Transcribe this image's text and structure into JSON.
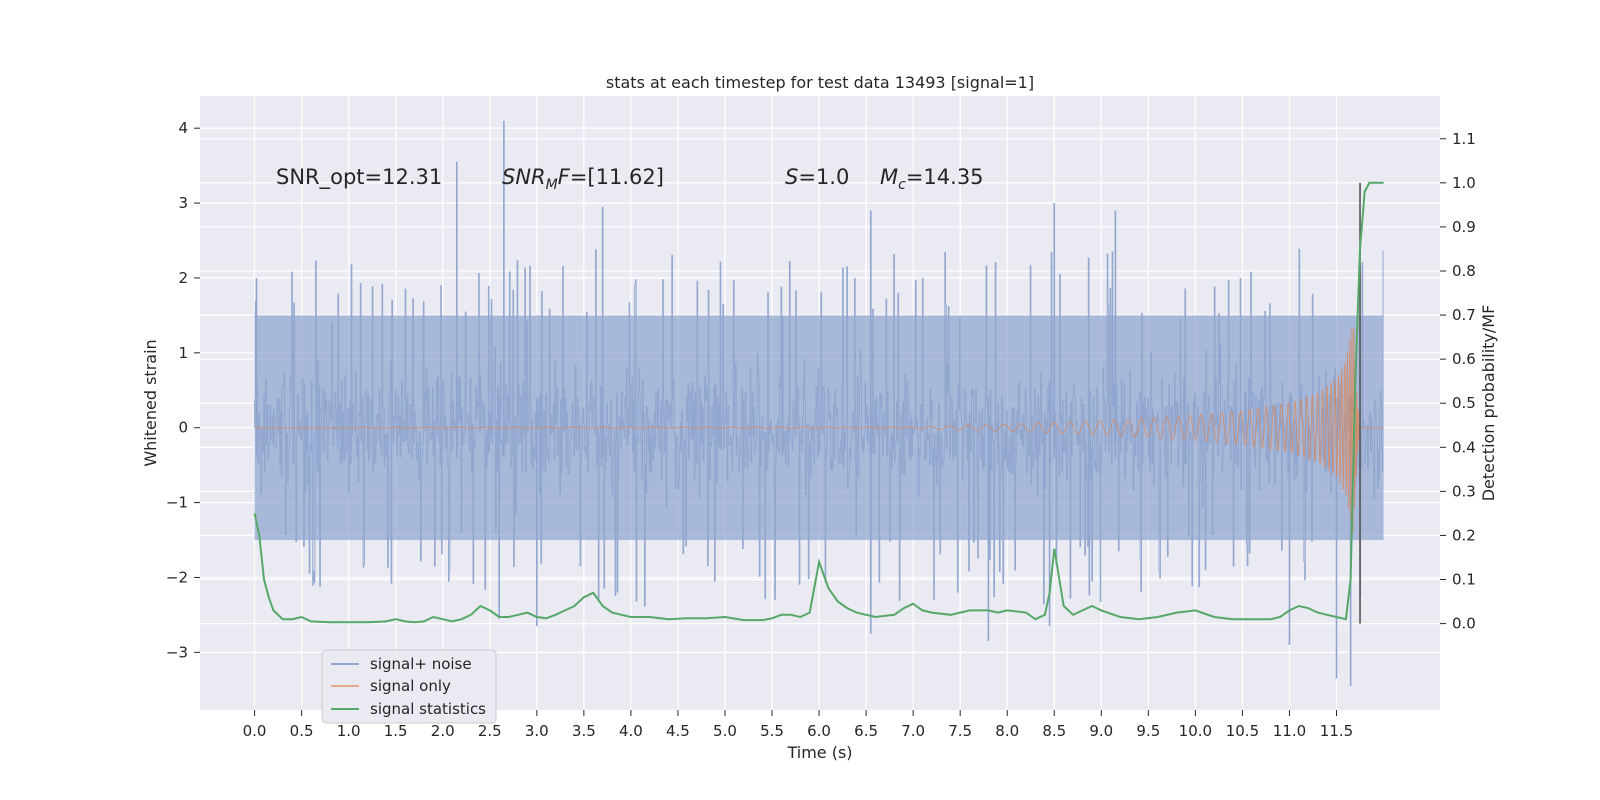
{
  "chart_data": {
    "type": "line",
    "title": "stats at each timestep for test data 13493 [signal=1]",
    "xlabel": "Time (s)",
    "ylabel": "Whitened strain",
    "y2label": "Detection probability/MF",
    "xlim": [
      -0.58,
      12.6
    ],
    "ylim": [
      -3.77,
      4.43
    ],
    "y2lim": [
      -0.196,
      1.197
    ],
    "x_ticks": [
      0.0,
      0.5,
      1.0,
      1.5,
      2.0,
      2.5,
      3.0,
      3.5,
      4.0,
      4.5,
      5.0,
      5.5,
      6.0,
      6.5,
      7.0,
      7.5,
      8.0,
      8.5,
      9.0,
      9.5,
      10.0,
      10.5,
      11.0,
      11.5
    ],
    "x_tick_labels": [
      "0.0",
      "0.5",
      "1.0",
      "1.5",
      "2.0",
      "2.5",
      "3.0",
      "3.5",
      "4.0",
      "4.5",
      "5.0",
      "5.5",
      "6.0",
      "6.5",
      "7.0",
      "7.5",
      "8.0",
      "8.5",
      "9.0",
      "9.5",
      "10.0",
      "10.5",
      "11.0",
      "11.5"
    ],
    "y_ticks": [
      -3,
      -2,
      -1,
      0,
      1,
      2,
      3,
      4
    ],
    "y_tick_labels": [
      "−3",
      "−2",
      "−1",
      "0",
      "1",
      "2",
      "3",
      "4"
    ],
    "y2_ticks": [
      0.0,
      0.1,
      0.2,
      0.3,
      0.4,
      0.5,
      0.6,
      0.7,
      0.8,
      0.9,
      1.0,
      1.1
    ],
    "y2_tick_labels": [
      "0.0",
      "0.1",
      "0.2",
      "0.3",
      "0.4",
      "0.5",
      "0.6",
      "0.7",
      "0.8",
      "0.9",
      "1.0",
      "1.1"
    ],
    "grid": true,
    "legend_position": "lower-left",
    "annotations": [
      {
        "text": "SNR_opt=12.31",
        "x": 0.2,
        "y": 3.35
      },
      {
        "text": "SNR_MF=[11.62]",
        "x": 2.6,
        "y": 3.35
      },
      {
        "text": "S=1.0",
        "x": 5.6,
        "y": 3.35
      },
      {
        "text": "M_c=14.35",
        "x": 6.6,
        "y": 3.35
      }
    ],
    "vline": {
      "x": 11.75,
      "y2_range": [
        0.0,
        1.0
      ]
    },
    "series": [
      {
        "name": "signal+ noise",
        "color": "#8fa5cf",
        "axis": "left",
        "x_range": [
          0.0,
          12.0
        ],
        "typical_band": [
          -1.5,
          1.5
        ],
        "peaks": [
          {
            "x": 0.02,
            "y": 2.0
          },
          {
            "x": 2.15,
            "y": 3.55
          },
          {
            "x": 2.65,
            "y": 4.1
          },
          {
            "x": 3.7,
            "y": 2.95
          },
          {
            "x": 6.55,
            "y": 2.9
          },
          {
            "x": 8.5,
            "y": 3.0
          },
          {
            "x": 9.15,
            "y": 2.9
          },
          {
            "x": 2.6,
            "y": -2.55
          },
          {
            "x": 3.0,
            "y": -2.65
          },
          {
            "x": 6.55,
            "y": -2.75
          },
          {
            "x": 7.8,
            "y": -2.85
          },
          {
            "x": 8.45,
            "y": -2.65
          },
          {
            "x": 11.0,
            "y": -2.9
          },
          {
            "x": 11.5,
            "y": -3.35
          },
          {
            "x": 11.65,
            "y": -3.45
          }
        ]
      },
      {
        "name": "signal only",
        "color": "#dd8452",
        "axis": "left",
        "x_range": [
          0.0,
          12.0
        ],
        "envelope": [
          {
            "x": 7.0,
            "amp": 0.01
          },
          {
            "x": 7.5,
            "amp": 0.03
          },
          {
            "x": 8.0,
            "amp": 0.05
          },
          {
            "x": 8.5,
            "amp": 0.07
          },
          {
            "x": 9.0,
            "amp": 0.1
          },
          {
            "x": 9.5,
            "amp": 0.13
          },
          {
            "x": 10.0,
            "amp": 0.17
          },
          {
            "x": 10.5,
            "amp": 0.23
          },
          {
            "x": 11.0,
            "amp": 0.33
          },
          {
            "x": 11.3,
            "amp": 0.46
          },
          {
            "x": 11.5,
            "amp": 0.65
          },
          {
            "x": 11.6,
            "amp": 0.9
          },
          {
            "x": 11.68,
            "amp": 1.45
          },
          {
            "x": 11.72,
            "amp": 0.4
          },
          {
            "x": 11.75,
            "amp": 0.0
          }
        ]
      },
      {
        "name": "signal statistics",
        "color": "#55a868",
        "axis": "right",
        "x": [
          0.0,
          0.05,
          0.1,
          0.15,
          0.2,
          0.3,
          0.4,
          0.5,
          0.6,
          0.8,
          1.0,
          1.2,
          1.4,
          1.5,
          1.6,
          1.7,
          1.8,
          1.9,
          2.0,
          2.1,
          2.2,
          2.3,
          2.4,
          2.5,
          2.6,
          2.7,
          2.8,
          2.9,
          3.0,
          3.1,
          3.2,
          3.3,
          3.4,
          3.5,
          3.6,
          3.7,
          3.8,
          4.0,
          4.2,
          4.4,
          4.6,
          4.8,
          5.0,
          5.2,
          5.4,
          5.5,
          5.6,
          5.7,
          5.8,
          5.9,
          6.0,
          6.1,
          6.2,
          6.3,
          6.4,
          6.6,
          6.8,
          6.9,
          7.0,
          7.1,
          7.2,
          7.4,
          7.5,
          7.6,
          7.7,
          7.8,
          7.9,
          8.0,
          8.2,
          8.3,
          8.4,
          8.45,
          8.5,
          8.6,
          8.7,
          8.8,
          8.9,
          9.0,
          9.2,
          9.4,
          9.6,
          9.8,
          10.0,
          10.2,
          10.4,
          10.6,
          10.8,
          10.9,
          11.0,
          11.1,
          11.2,
          11.3,
          11.4,
          11.5,
          11.6,
          11.65,
          11.7,
          11.75,
          11.8,
          11.85,
          11.9,
          12.0
        ],
        "y": [
          0.25,
          0.2,
          0.1,
          0.06,
          0.03,
          0.01,
          0.01,
          0.015,
          0.005,
          0.003,
          0.003,
          0.003,
          0.005,
          0.01,
          0.005,
          0.003,
          0.005,
          0.015,
          0.01,
          0.005,
          0.01,
          0.02,
          0.04,
          0.03,
          0.015,
          0.015,
          0.02,
          0.025,
          0.015,
          0.012,
          0.02,
          0.03,
          0.04,
          0.06,
          0.07,
          0.04,
          0.025,
          0.015,
          0.015,
          0.01,
          0.012,
          0.012,
          0.015,
          0.008,
          0.008,
          0.012,
          0.02,
          0.02,
          0.015,
          0.025,
          0.14,
          0.08,
          0.05,
          0.035,
          0.025,
          0.015,
          0.02,
          0.035,
          0.045,
          0.03,
          0.025,
          0.02,
          0.025,
          0.03,
          0.03,
          0.03,
          0.025,
          0.03,
          0.025,
          0.01,
          0.02,
          0.07,
          0.17,
          0.04,
          0.02,
          0.03,
          0.04,
          0.03,
          0.015,
          0.01,
          0.015,
          0.025,
          0.03,
          0.015,
          0.01,
          0.01,
          0.01,
          0.015,
          0.03,
          0.04,
          0.035,
          0.025,
          0.02,
          0.015,
          0.01,
          0.1,
          0.55,
          0.85,
          0.98,
          1.0,
          1.0,
          1.0
        ]
      }
    ],
    "legend": [
      {
        "label": "signal+ noise",
        "color": "#8fa5cf"
      },
      {
        "label": "signal only",
        "color": "#e3a98a"
      },
      {
        "label": "signal statistics",
        "color": "#55a868"
      }
    ]
  }
}
